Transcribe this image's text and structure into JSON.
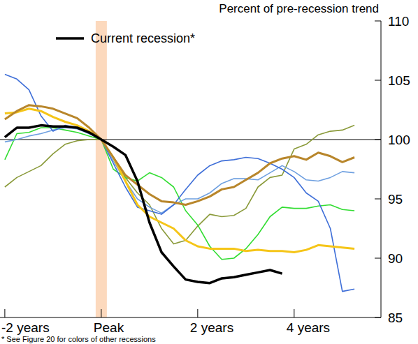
{
  "chart_data": {
    "type": "line",
    "y_label": "Percent of pre-recession trend",
    "annotations": [
      "* See Figure 20 for colors of other recessions"
    ],
    "legend": "top-left",
    "x": [
      -8,
      -7,
      -6,
      -5,
      -4,
      -3,
      -2,
      -1,
      0,
      1,
      2,
      3,
      4,
      5,
      6,
      7,
      8,
      9,
      10,
      11,
      12,
      13,
      14,
      15,
      16,
      17,
      18,
      19,
      20,
      21
    ],
    "xlim": [
      -8.4,
      23.2
    ],
    "xticks": [
      {
        "value": -8,
        "label": "-2 years"
      },
      {
        "value": 0,
        "label": "Peak"
      },
      {
        "value": 8,
        "label": "2 years"
      },
      {
        "value": 16,
        "label": "4 years"
      }
    ],
    "ylim": [
      85,
      110
    ],
    "yticks": [
      85,
      90,
      95,
      100,
      105,
      110
    ],
    "series": [
      {
        "name": "Current recession*",
        "color": "#000000",
        "values": [
          100.2,
          101.0,
          101.0,
          101.2,
          101.1,
          101.1,
          101.0,
          100.6,
          100,
          99.4,
          98.7,
          96.5,
          93.0,
          90.5,
          89.3,
          88.2,
          88.0,
          87.9,
          88.3,
          88.4,
          88.6,
          88.8,
          89.0,
          88.7,
          null,
          null,
          null,
          null,
          null,
          null
        ]
      },
      {
        "color": "#b8862b",
        "values": [
          101.7,
          102.4,
          102.9,
          102.8,
          102.6,
          102.2,
          101.8,
          101.0,
          100,
          98.5,
          97.0,
          96.2,
          95.4,
          94.8,
          94.7,
          94.5,
          94.8,
          95.2,
          95.8,
          96.0,
          96.6,
          97.2,
          98.0,
          98.4,
          98.6,
          98.3,
          98.9,
          98.6,
          98.1,
          98.5
        ]
      },
      {
        "color": "#f5c518",
        "values": [
          102.2,
          102.3,
          102.6,
          102.4,
          101.9,
          101.5,
          101.2,
          100.7,
          100,
          98.5,
          96.5,
          94.5,
          93.5,
          93.0,
          92.5,
          91.5,
          91.0,
          90.8,
          90.8,
          90.8,
          90.6,
          90.7,
          90.6,
          90.6,
          90.5,
          90.7,
          91.1,
          91.0,
          90.9,
          90.8
        ]
      },
      {
        "color": "#3f6fd8",
        "values": [
          105.5,
          105.1,
          104.2,
          102.0,
          100.7,
          101.2,
          101.0,
          100.5,
          100,
          98.0,
          96.0,
          94.3,
          94.0,
          93.7,
          94.5,
          95.8,
          97.0,
          97.8,
          98.2,
          98.3,
          98.5,
          98.4,
          98.0,
          97.5,
          96.8,
          95.5,
          94.8,
          92.5,
          87.2,
          87.4
        ]
      },
      {
        "color": "#6fa0e0",
        "values": [
          99.8,
          100.0,
          100.3,
          100.5,
          100.8,
          101.0,
          100.9,
          100.5,
          100,
          98.2,
          96.5,
          95.0,
          94.3,
          93.8,
          94.5,
          95.0,
          95.0,
          95.5,
          96.3,
          96.7,
          96.7,
          96.6,
          97.2,
          97.8,
          97.3,
          96.6,
          96.5,
          96.8,
          97.3,
          97.2
        ]
      },
      {
        "color": "#33dd33",
        "values": [
          98.3,
          100.5,
          100.6,
          101.0,
          101.0,
          100.8,
          100.6,
          100.3,
          100,
          97.5,
          96.8,
          96.5,
          97.2,
          96.8,
          96.0,
          94.0,
          92.8,
          91.0,
          89.9,
          90.0,
          90.8,
          92.0,
          93.5,
          94.3,
          94.2,
          94.2,
          94.4,
          94.5,
          94.1,
          94.0
        ]
      },
      {
        "color": "#8a9a3a",
        "values": [
          96.0,
          96.8,
          97.3,
          97.8,
          98.8,
          99.6,
          99.9,
          100.0,
          100,
          98.5,
          96.8,
          95.5,
          94.5,
          92.5,
          91.2,
          91.5,
          92.7,
          93.7,
          93.5,
          93.6,
          94.2,
          96.0,
          96.8,
          97.0,
          99.2,
          99.6,
          100.4,
          100.7,
          100.8,
          101.2
        ]
      }
    ]
  }
}
